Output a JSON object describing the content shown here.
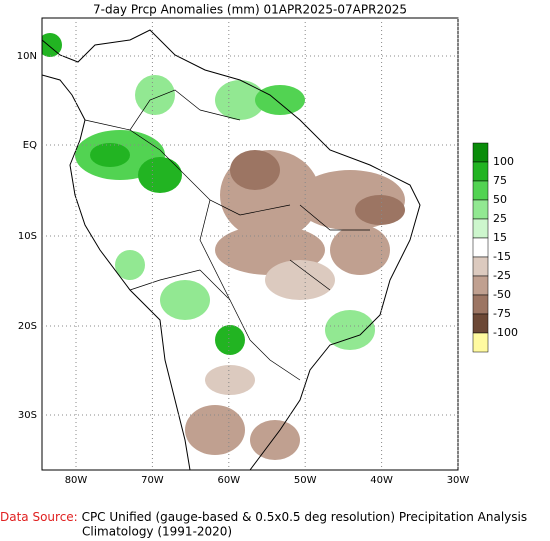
{
  "map": {
    "title": "7-day Prcp Anomalies (mm) 01APR2025-07APR2025",
    "lat_labels": [
      "10N",
      "EQ",
      "10S",
      "20S",
      "30S"
    ],
    "lon_labels": [
      "80W",
      "70W",
      "60W",
      "50W",
      "40W",
      "30W"
    ],
    "legend": {
      "labels": [
        "100",
        "75",
        "50",
        "25",
        "15",
        "-15",
        "-25",
        "-50",
        "-75",
        "-100"
      ],
      "colors": [
        "#0a8c0a",
        "#22b422",
        "#52d352",
        "#92e892",
        "#cdf6cd",
        "#ffffff",
        "#dccabf",
        "#c0a090",
        "#9c7563",
        "#6c4836",
        "#fffaa0"
      ]
    },
    "footer": {
      "source_label": "Data Source:",
      "source_text": "CPC Unified (gauge-based & 0.5x0.5 deg resolution) Precipitation Analysis",
      "climatology": "Climatology (1991-2020)"
    }
  }
}
